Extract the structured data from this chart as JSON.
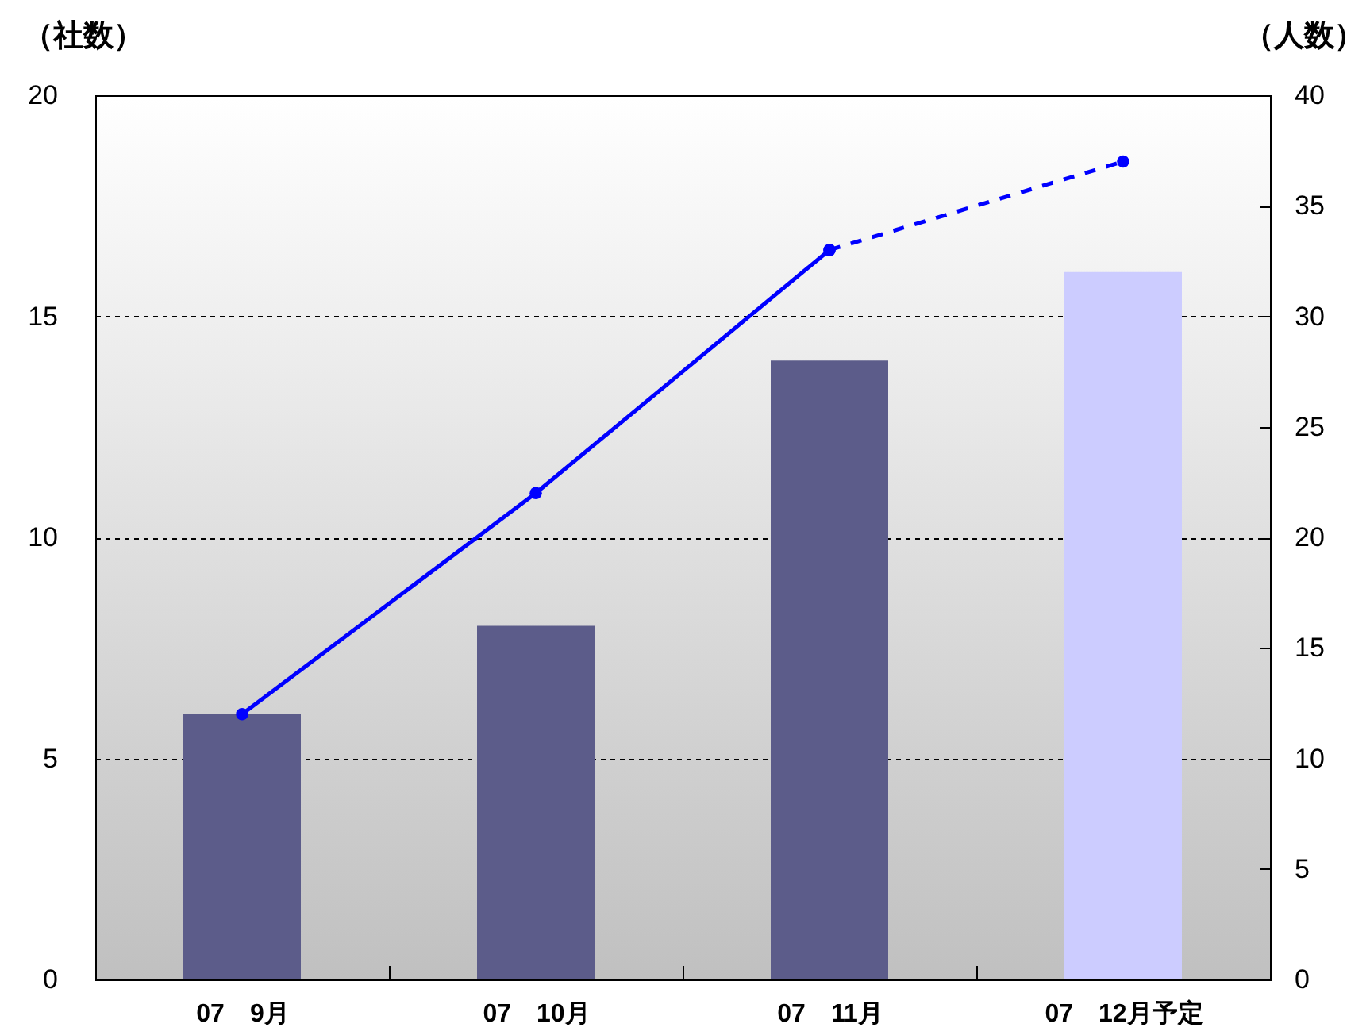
{
  "chart_data": {
    "type": "bar",
    "ylabel": "（社数）",
    "y2label": "（人数）",
    "categories": [
      "07　9月",
      "07　10月",
      "07　11月",
      "07　12月予定"
    ],
    "ylim": [
      0,
      20
    ],
    "yticks": [
      0,
      5,
      10,
      15,
      20
    ],
    "y2lim": [
      0,
      40
    ],
    "y2ticks": [
      0,
      5,
      10,
      15,
      20,
      25,
      30,
      35,
      40
    ],
    "grid": "y",
    "series": [
      {
        "colors": [
          "#5c5c8a",
          "#5c5c8a",
          "#5c5c8a",
          "#ccccff"
        ],
        "values": [
          6,
          8,
          14,
          16
        ]
      },
      {
        "type": "line",
        "axis": "y2",
        "color": "#0000ff",
        "marker": "circle",
        "line_style": "solid",
        "values": [
          12,
          22,
          33,
          null
        ]
      },
      {
        "type": "line",
        "axis": "y2",
        "color": "#0000ff",
        "marker": "circle",
        "line_style": "dashed",
        "values": [
          null,
          null,
          33,
          37
        ]
      }
    ]
  }
}
